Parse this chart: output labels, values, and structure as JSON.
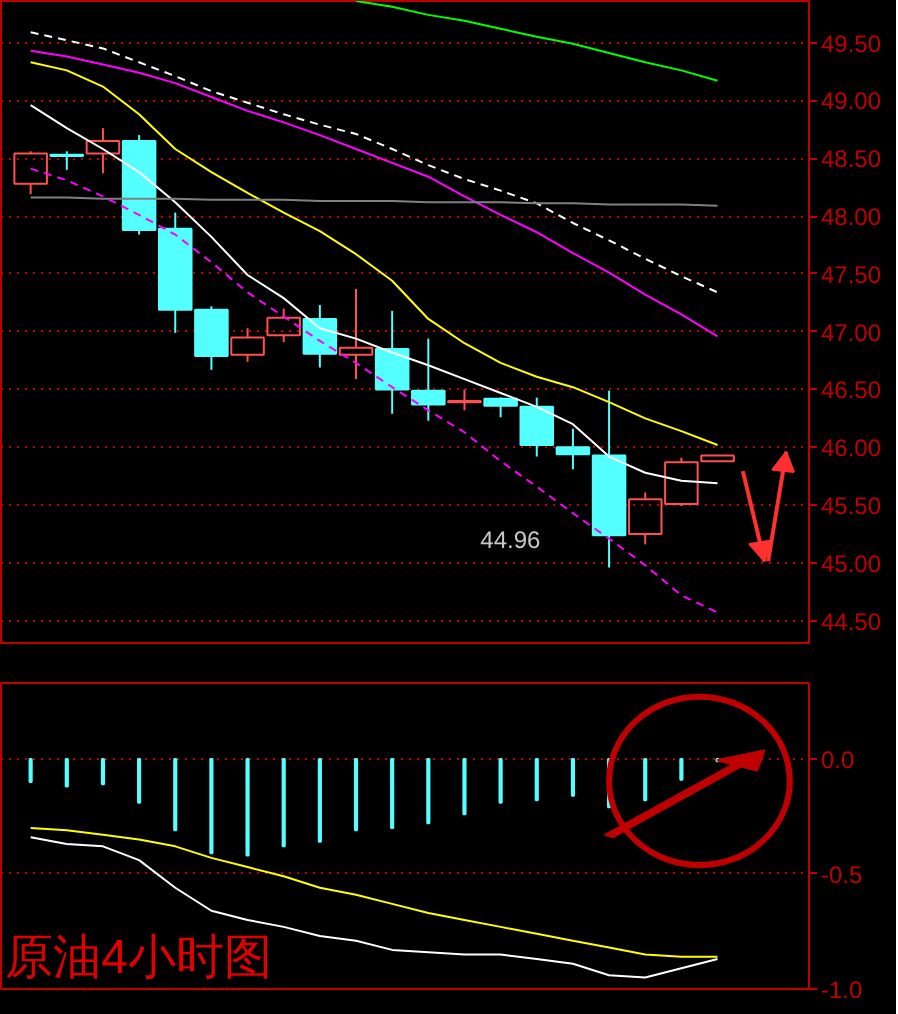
{
  "chart_data": [
    {
      "type": "candlestick",
      "categories": [
        null,
        null,
        null,
        null,
        null,
        null,
        null,
        null,
        null,
        null,
        null,
        null,
        null,
        null,
        null,
        null,
        null,
        null,
        null,
        null
      ],
      "ohlc": [
        [
          48.28,
          48.56,
          48.19,
          48.54
        ],
        [
          48.53,
          48.56,
          48.4,
          48.52
        ],
        [
          48.54,
          48.76,
          48.37,
          48.65
        ],
        [
          48.65,
          48.7,
          47.84,
          47.88
        ],
        [
          47.89,
          48.03,
          46.99,
          47.19
        ],
        [
          47.19,
          47.22,
          46.67,
          46.79
        ],
        [
          46.8,
          47.03,
          46.74,
          46.95
        ],
        [
          46.97,
          47.2,
          46.91,
          47.12
        ],
        [
          47.11,
          47.23,
          46.69,
          46.81
        ],
        [
          46.8,
          47.37,
          46.59,
          46.86
        ],
        [
          46.85,
          47.18,
          46.29,
          46.5
        ],
        [
          46.49,
          46.94,
          46.23,
          46.37
        ],
        [
          46.39,
          46.5,
          46.32,
          46.4
        ],
        [
          46.42,
          46.43,
          46.26,
          46.36
        ],
        [
          46.35,
          46.43,
          45.92,
          46.02
        ],
        [
          46.0,
          46.16,
          45.81,
          45.94
        ],
        [
          45.93,
          46.49,
          44.96,
          45.24
        ],
        [
          45.25,
          45.61,
          45.16,
          45.55
        ],
        [
          45.51,
          45.91,
          45.49,
          45.87
        ],
        [
          45.88,
          45.93,
          45.88,
          45.93
        ]
      ],
      "colors": [
        "#ff5050",
        "#54ffff",
        "#ff5050",
        "#54ffff",
        "#54ffff",
        "#54ffff",
        "#ff5050",
        "#ff5050",
        "#54ffff",
        "#ff5050",
        "#54ffff",
        "#54ffff",
        "#ff5050",
        "#54ffff",
        "#54ffff",
        "#54ffff",
        "#54ffff",
        "#ff5050",
        "#ff5050",
        "#ff5050"
      ],
      "series": [
        {
          "type": "line",
          "color": "#ffffff",
          "values": [
            48.96,
            48.76,
            48.58,
            48.38,
            48.12,
            47.82,
            47.49,
            47.29,
            47.03,
            46.94,
            46.82,
            46.71,
            46.59,
            46.47,
            46.35,
            46.2,
            45.92,
            45.78,
            45.71,
            45.69
          ]
        },
        {
          "type": "line",
          "color": "#ffff00",
          "values": [
            49.33,
            49.26,
            49.12,
            48.88,
            48.58,
            48.38,
            48.2,
            48.03,
            47.87,
            47.67,
            47.44,
            47.11,
            46.9,
            46.73,
            46.61,
            46.52,
            46.39,
            46.25,
            46.14,
            46.02
          ]
        },
        {
          "type": "line",
          "color": "#ff00ff",
          "values": [
            49.43,
            49.38,
            49.31,
            49.24,
            49.15,
            49.03,
            48.91,
            48.81,
            48.7,
            48.58,
            48.46,
            48.34,
            48.17,
            48.01,
            47.86,
            47.68,
            47.51,
            47.32,
            47.15,
            46.96
          ]
        },
        {
          "type": "line",
          "color": "#ffffff",
          "line_style": "dashed",
          "values": [
            49.59,
            49.52,
            49.45,
            49.33,
            49.21,
            49.08,
            48.98,
            48.88,
            48.79,
            48.71,
            48.58,
            48.44,
            48.32,
            48.22,
            48.11,
            47.94,
            47.79,
            47.63,
            47.48,
            47.34
          ]
        },
        {
          "type": "line",
          "color": "#00ff00",
          "values": [
            null,
            null,
            null,
            null,
            null,
            null,
            null,
            null,
            null,
            49.86,
            49.81,
            49.74,
            49.69,
            49.62,
            49.55,
            49.49,
            49.41,
            49.33,
            49.26,
            49.17
          ]
        },
        {
          "type": "line",
          "color": "#808080",
          "values": [
            48.16,
            48.16,
            48.15,
            48.15,
            48.15,
            48.14,
            48.14,
            48.14,
            48.13,
            48.13,
            48.13,
            48.12,
            48.12,
            48.12,
            48.11,
            48.11,
            48.1,
            48.1,
            48.1,
            48.09
          ]
        },
        {
          "type": "line",
          "color": "#ff00ff",
          "line_style": "dashed",
          "values": [
            48.41,
            48.31,
            48.17,
            48.01,
            47.84,
            47.6,
            47.34,
            47.13,
            46.92,
            46.73,
            46.52,
            46.32,
            46.13,
            45.88,
            45.66,
            45.43,
            45.21,
            44.98,
            44.72,
            44.57
          ]
        }
      ],
      "ylim": [
        44.29,
        49.86
      ],
      "yticks": [
        {
          "value": 44.5,
          "label": "44.50"
        },
        {
          "value": 45,
          "label": "45.00"
        },
        {
          "value": 45.5,
          "label": "45.50"
        },
        {
          "value": 46,
          "label": "46.00"
        },
        {
          "value": 46.5,
          "label": "46.50"
        },
        {
          "value": 47,
          "label": "47.00"
        },
        {
          "value": 47.5,
          "label": "47.50"
        },
        {
          "value": 48,
          "label": "48.00"
        },
        {
          "value": 48.5,
          "label": "48.50"
        },
        {
          "value": 49,
          "label": "49.00"
        },
        {
          "value": 49.5,
          "label": "49.50"
        }
      ],
      "grid": "y",
      "tick_labels": "y",
      "annotations": [
        "44.96"
      ]
    },
    {
      "type": "bar",
      "title": "原油4小时图",
      "categories": [
        null,
        null,
        null,
        null,
        null,
        null,
        null,
        null,
        null,
        null,
        null,
        null,
        null,
        null,
        null,
        null,
        null,
        null,
        null,
        null
      ],
      "series": [
        {
          "type": "bar",
          "color": "#54ffff",
          "values": [
            -0.1,
            -0.12,
            -0.11,
            -0.19,
            -0.31,
            -0.41,
            -0.42,
            -0.38,
            -0.36,
            -0.31,
            -0.3,
            -0.28,
            -0.24,
            -0.19,
            -0.18,
            -0.16,
            -0.21,
            -0.18,
            -0.09,
            -0.01
          ]
        },
        {
          "type": "line",
          "color": "#ffffff",
          "values": [
            -0.34,
            -0.37,
            -0.38,
            -0.44,
            -0.56,
            -0.66,
            -0.7,
            -0.73,
            -0.77,
            -0.79,
            -0.83,
            -0.84,
            -0.85,
            -0.85,
            -0.87,
            -0.89,
            -0.94,
            -0.95,
            -0.91,
            -0.87
          ]
        },
        {
          "type": "line",
          "color": "#ffff00",
          "values": [
            -0.3,
            -0.31,
            -0.33,
            -0.35,
            -0.38,
            -0.43,
            -0.47,
            -0.51,
            -0.56,
            -0.59,
            -0.63,
            -0.67,
            -0.7,
            -0.73,
            -0.76,
            -0.79,
            -0.82,
            -0.85,
            -0.86,
            -0.86
          ]
        }
      ],
      "ylim": [
        -1.0,
        0.33
      ],
      "yticks": [
        {
          "value": 0,
          "label": "0.0"
        },
        {
          "value": -0.5,
          "label": "-0.5"
        },
        {
          "value": -1,
          "label": "-1.0"
        }
      ],
      "grid": "y",
      "tick_labels": "y"
    }
  ]
}
